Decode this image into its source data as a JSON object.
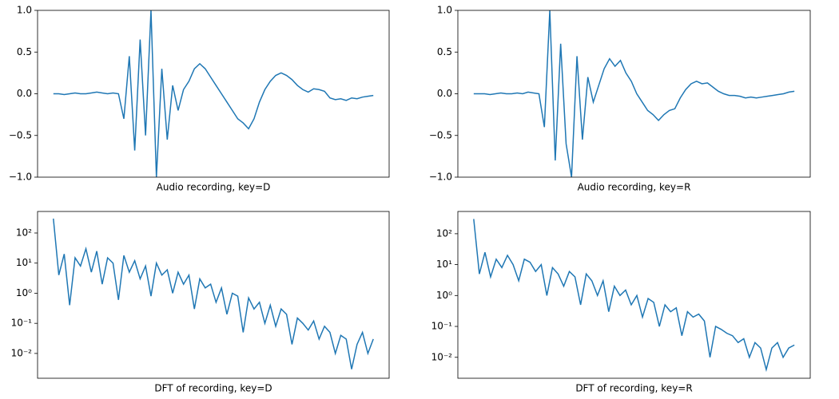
{
  "chart_data": [
    {
      "type": "line",
      "xlabel": "Audio recording, key=D",
      "color": "#1f77b4",
      "ylim": [
        -1,
        1
      ],
      "yticks": [
        {
          "value": -1,
          "label": "−1.0"
        },
        {
          "value": -0.5,
          "label": "−0.5"
        },
        {
          "value": 0,
          "label": "0.0"
        },
        {
          "value": 0.5,
          "label": "0.5"
        },
        {
          "value": 1,
          "label": "1.0"
        }
      ],
      "values": [
        0.0,
        0.0,
        -0.01,
        0.0,
        0.01,
        0.0,
        0.0,
        0.01,
        0.02,
        0.01,
        0.0,
        0.01,
        0.0,
        -0.3,
        0.45,
        -0.68,
        0.65,
        -0.5,
        1.0,
        -1.0,
        0.3,
        -0.55,
        0.1,
        -0.2,
        0.05,
        0.15,
        0.3,
        0.36,
        0.3,
        0.2,
        0.1,
        0.0,
        -0.1,
        -0.2,
        -0.3,
        -0.35,
        -0.42,
        -0.3,
        -0.1,
        0.05,
        0.15,
        0.22,
        0.25,
        0.22,
        0.17,
        0.1,
        0.05,
        0.02,
        0.06,
        0.05,
        0.03,
        -0.05,
        -0.07,
        -0.06,
        -0.08,
        -0.05,
        -0.06,
        -0.04,
        -0.03,
        -0.02
      ]
    },
    {
      "type": "line",
      "xlabel": "Audio recording, key=R",
      "color": "#1f77b4",
      "ylim": [
        -1,
        1
      ],
      "yticks": [
        {
          "value": -1,
          "label": "−1.0"
        },
        {
          "value": -0.5,
          "label": "−0.5"
        },
        {
          "value": 0,
          "label": "0.0"
        },
        {
          "value": 0.5,
          "label": "0.5"
        },
        {
          "value": 1,
          "label": "1.0"
        }
      ],
      "values": [
        0.0,
        0.0,
        0.0,
        -0.01,
        0.0,
        0.01,
        0.0,
        0.0,
        0.01,
        0.0,
        0.02,
        0.01,
        0.0,
        -0.4,
        1.0,
        -0.8,
        0.6,
        -0.6,
        -1.0,
        0.45,
        -0.55,
        0.2,
        -0.1,
        0.1,
        0.3,
        0.42,
        0.33,
        0.4,
        0.25,
        0.15,
        0.0,
        -0.1,
        -0.2,
        -0.25,
        -0.32,
        -0.25,
        -0.2,
        -0.18,
        -0.05,
        0.05,
        0.12,
        0.15,
        0.12,
        0.13,
        0.08,
        0.03,
        0.0,
        -0.02,
        -0.02,
        -0.03,
        -0.05,
        -0.04,
        -0.05,
        -0.04,
        -0.03,
        -0.02,
        -0.01,
        0.0,
        0.02,
        0.03
      ]
    },
    {
      "type": "line",
      "xlabel": "DFT of recording, key=D",
      "color": "#1f77b4",
      "log_scale": true,
      "ylim": [
        0.0015,
        519
      ],
      "yticks": [
        {
          "value": 0.01,
          "label": "10⁻²"
        },
        {
          "value": 0.1,
          "label": "10⁻¹"
        },
        {
          "value": 1,
          "label": "10⁰"
        },
        {
          "value": 10,
          "label": "10¹"
        },
        {
          "value": 100,
          "label": "10²"
        }
      ],
      "values": [
        300,
        4,
        20,
        0.4,
        15,
        8,
        30,
        5,
        25,
        2,
        15,
        10,
        0.6,
        18,
        5,
        12,
        3,
        8,
        0.8,
        10,
        4,
        6,
        1,
        5,
        2,
        4,
        0.3,
        3,
        1.5,
        2,
        0.5,
        1.5,
        0.2,
        1,
        0.8,
        0.05,
        0.7,
        0.3,
        0.5,
        0.1,
        0.4,
        0.08,
        0.3,
        0.2,
        0.02,
        0.15,
        0.1,
        0.06,
        0.12,
        0.03,
        0.08,
        0.05,
        0.01,
        0.04,
        0.03,
        0.003,
        0.02,
        0.05,
        0.01,
        0.03
      ]
    },
    {
      "type": "line",
      "xlabel": "DFT of recording, key=R",
      "color": "#1f77b4",
      "log_scale": true,
      "ylim": [
        0.0021,
        525
      ],
      "yticks": [
        {
          "value": 0.01,
          "label": "10⁻²"
        },
        {
          "value": 0.1,
          "label": "10⁻¹"
        },
        {
          "value": 1,
          "label": "10⁰"
        },
        {
          "value": 10,
          "label": "10¹"
        },
        {
          "value": 100,
          "label": "10²"
        }
      ],
      "values": [
        300,
        5,
        25,
        4,
        15,
        8,
        20,
        10,
        3,
        15,
        12,
        6,
        10,
        1,
        8,
        5,
        2,
        6,
        4,
        0.5,
        5,
        3,
        1,
        3,
        0.3,
        2,
        1,
        1.5,
        0.5,
        1,
        0.2,
        0.8,
        0.6,
        0.1,
        0.5,
        0.3,
        0.4,
        0.05,
        0.3,
        0.2,
        0.25,
        0.15,
        0.01,
        0.1,
        0.08,
        0.06,
        0.05,
        0.03,
        0.04,
        0.01,
        0.03,
        0.02,
        0.004,
        0.02,
        0.03,
        0.01,
        0.02,
        0.025
      ]
    }
  ]
}
